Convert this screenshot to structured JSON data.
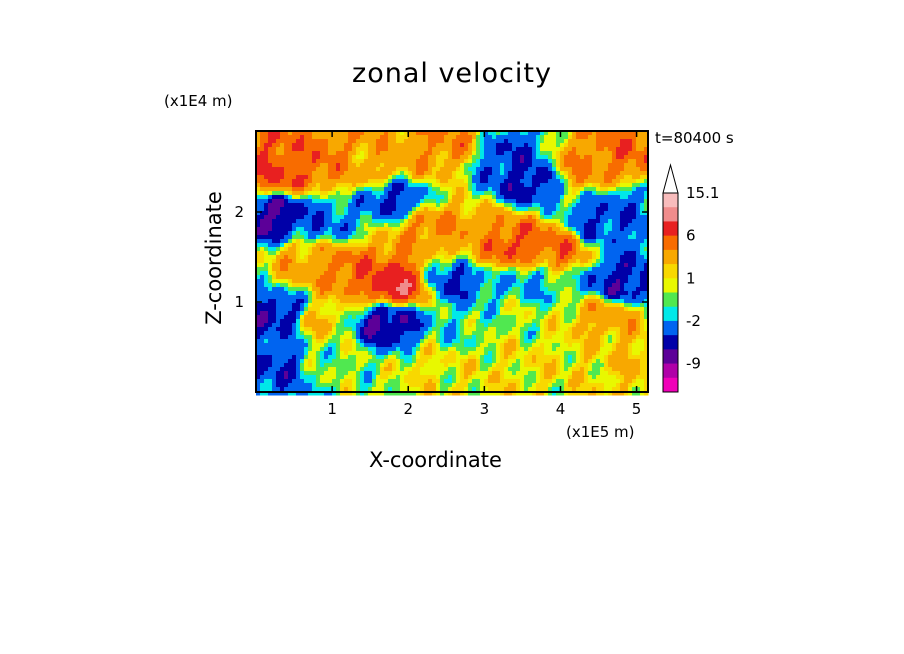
{
  "chart_data": {
    "type": "heatmap",
    "title": "zonal velocity",
    "xlabel": "X-coordinate",
    "ylabel": "Z-coordinate",
    "x_unit": "(x1E5 m)",
    "y_unit": "(x1E4 m)",
    "time_label": "t=80400 s",
    "xlim": [
      0,
      5.15
    ],
    "ylim": [
      0,
      2.9
    ],
    "x_ticks": [
      {
        "value": 1,
        "label": "1"
      },
      {
        "value": 2,
        "label": "2"
      },
      {
        "value": 3,
        "label": "3"
      },
      {
        "value": 4,
        "label": "4"
      },
      {
        "value": 5,
        "label": "5"
      }
    ],
    "y_ticks": [
      {
        "value": 1,
        "label": "1"
      },
      {
        "value": 2,
        "label": "2"
      }
    ],
    "colorbar": {
      "levels": [
        {
          "upper": 15.1,
          "color": "#f8bcbc"
        },
        {
          "upper": 12,
          "color": "#f08c8c"
        },
        {
          "upper": 9,
          "color": "#e82020"
        },
        {
          "upper": 6,
          "color": "#f86c00"
        },
        {
          "upper": 4,
          "color": "#f8a800"
        },
        {
          "upper": 2,
          "color": "#f8d800"
        },
        {
          "upper": 1,
          "color": "#e8f800"
        },
        {
          "upper": 0,
          "color": "#50e850"
        },
        {
          "upper": -1,
          "color": "#00e8e8"
        },
        {
          "upper": -2,
          "color": "#0064f0"
        },
        {
          "upper": -4,
          "color": "#0000a8"
        },
        {
          "upper": -6,
          "color": "#5c0098"
        },
        {
          "upper": -9,
          "color": "#b000a8"
        },
        {
          "upper": -12,
          "color": "#f000b8"
        }
      ],
      "labels": [
        "15.1",
        "6",
        "1",
        "-2",
        "-9"
      ],
      "label_values": [
        15.1,
        6,
        1,
        -2,
        -9
      ],
      "max_arrow_color": "#ffffff"
    },
    "field_features": [
      {
        "x": 0.3,
        "z": 2.45,
        "u": 6
      },
      {
        "x": 0.8,
        "z": 2.55,
        "u": 5
      },
      {
        "x": 1.4,
        "z": 2.5,
        "u": 3
      },
      {
        "x": 2.0,
        "z": 2.6,
        "u": 3
      },
      {
        "x": 2.5,
        "z": 2.75,
        "u": 4
      },
      {
        "x": 3.3,
        "z": 2.6,
        "u": -4
      },
      {
        "x": 3.6,
        "z": 2.35,
        "u": -5
      },
      {
        "x": 4.3,
        "z": 2.5,
        "u": 4
      },
      {
        "x": 4.8,
        "z": 2.65,
        "u": 5
      },
      {
        "x": 0.25,
        "z": 1.95,
        "u": -6
      },
      {
        "x": 0.9,
        "z": 1.9,
        "u": -3
      },
      {
        "x": 1.8,
        "z": 2.15,
        "u": -4
      },
      {
        "x": 2.3,
        "z": 1.8,
        "u": 4
      },
      {
        "x": 2.9,
        "z": 1.7,
        "u": 3
      },
      {
        "x": 3.3,
        "z": 1.65,
        "u": 6
      },
      {
        "x": 3.9,
        "z": 1.6,
        "u": 5
      },
      {
        "x": 4.5,
        "z": 1.9,
        "u": -4
      },
      {
        "x": 4.9,
        "z": 2.0,
        "u": -3
      },
      {
        "x": 0.7,
        "z": 1.45,
        "u": 3
      },
      {
        "x": 1.2,
        "z": 1.35,
        "u": 5
      },
      {
        "x": 1.85,
        "z": 1.2,
        "u": 8
      },
      {
        "x": 2.6,
        "z": 1.25,
        "u": -4
      },
      {
        "x": 3.6,
        "z": 1.2,
        "u": -2
      },
      {
        "x": 4.8,
        "z": 1.2,
        "u": -5
      },
      {
        "x": 0.35,
        "z": 0.85,
        "u": -5
      },
      {
        "x": 0.8,
        "z": 0.8,
        "u": 2
      },
      {
        "x": 1.75,
        "z": 0.75,
        "u": -6
      },
      {
        "x": 2.6,
        "z": 0.7,
        "u": -1
      },
      {
        "x": 3.5,
        "z": 0.8,
        "u": 0
      },
      {
        "x": 4.6,
        "z": 0.85,
        "u": 3
      },
      {
        "x": 0.2,
        "z": 0.35,
        "u": -4
      },
      {
        "x": 1.1,
        "z": 0.35,
        "u": 0
      },
      {
        "x": 2.3,
        "z": 0.3,
        "u": 1
      },
      {
        "x": 3.3,
        "z": 0.3,
        "u": 1
      },
      {
        "x": 4.2,
        "z": 0.35,
        "u": 1
      },
      {
        "x": 5.0,
        "z": 0.4,
        "u": 2
      }
    ]
  }
}
